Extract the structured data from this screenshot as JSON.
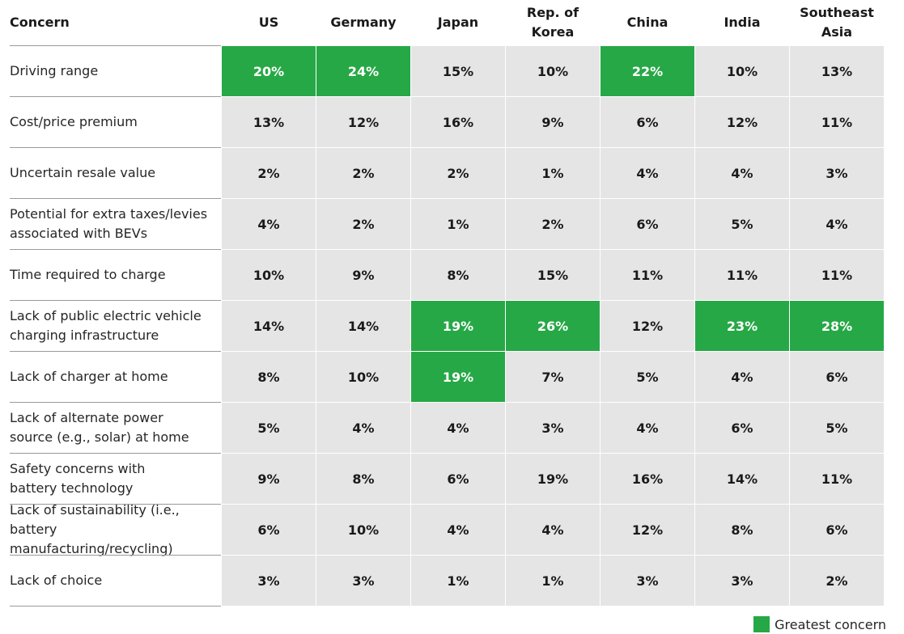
{
  "colors": {
    "cell": "#e5e5e5",
    "highlight": "#26a846",
    "rule": "#9a9a9a"
  },
  "header": {
    "concern": "Concern"
  },
  "legend": {
    "label": "Greatest concern"
  },
  "chart_data": {
    "type": "table",
    "columns": [
      "US",
      "Germany",
      "Japan",
      "Rep. of\nKorea",
      "China",
      "India",
      "Southeast\nAsia"
    ],
    "rows": [
      {
        "label": "Driving range",
        "values": [
          "20%",
          "24%",
          "15%",
          "10%",
          "22%",
          "10%",
          "13%"
        ],
        "highlight": [
          true,
          true,
          false,
          false,
          true,
          false,
          false
        ]
      },
      {
        "label": "Cost/price premium",
        "values": [
          "13%",
          "12%",
          "16%",
          "9%",
          "6%",
          "12%",
          "11%"
        ],
        "highlight": [
          false,
          false,
          false,
          false,
          false,
          false,
          false
        ]
      },
      {
        "label": "Uncertain resale value",
        "values": [
          "2%",
          "2%",
          "2%",
          "1%",
          "4%",
          "4%",
          "3%"
        ],
        "highlight": [
          false,
          false,
          false,
          false,
          false,
          false,
          false
        ]
      },
      {
        "label": "Potential for extra taxes/levies\nassociated with BEVs",
        "values": [
          "4%",
          "2%",
          "1%",
          "2%",
          "6%",
          "5%",
          "4%"
        ],
        "highlight": [
          false,
          false,
          false,
          false,
          false,
          false,
          false
        ]
      },
      {
        "label": "Time required to charge",
        "values": [
          "10%",
          "9%",
          "8%",
          "15%",
          "11%",
          "11%",
          "11%"
        ],
        "highlight": [
          false,
          false,
          false,
          false,
          false,
          false,
          false
        ]
      },
      {
        "label": "Lack of public electric vehicle\ncharging infrastructure",
        "values": [
          "14%",
          "14%",
          "19%",
          "26%",
          "12%",
          "23%",
          "28%"
        ],
        "highlight": [
          false,
          false,
          true,
          true,
          false,
          true,
          true
        ]
      },
      {
        "label": "Lack of charger at home",
        "values": [
          "8%",
          "10%",
          "19%",
          "7%",
          "5%",
          "4%",
          "6%"
        ],
        "highlight": [
          false,
          false,
          true,
          false,
          false,
          false,
          false
        ]
      },
      {
        "label": "Lack of alternate power\nsource (e.g., solar) at home",
        "values": [
          "5%",
          "4%",
          "4%",
          "3%",
          "4%",
          "6%",
          "5%"
        ],
        "highlight": [
          false,
          false,
          false,
          false,
          false,
          false,
          false
        ]
      },
      {
        "label": "Safety concerns with\nbattery technology",
        "values": [
          "9%",
          "8%",
          "6%",
          "19%",
          "16%",
          "14%",
          "11%"
        ],
        "highlight": [
          false,
          false,
          false,
          false,
          false,
          false,
          false
        ]
      },
      {
        "label": "Lack of sustainability (i.e., battery\nmanufacturing/recycling)",
        "values": [
          "6%",
          "10%",
          "4%",
          "4%",
          "12%",
          "8%",
          "6%"
        ],
        "highlight": [
          false,
          false,
          false,
          false,
          false,
          false,
          false
        ]
      },
      {
        "label": "Lack of choice",
        "values": [
          "3%",
          "3%",
          "1%",
          "1%",
          "3%",
          "3%",
          "2%"
        ],
        "highlight": [
          false,
          false,
          false,
          false,
          false,
          false,
          false
        ]
      }
    ]
  }
}
